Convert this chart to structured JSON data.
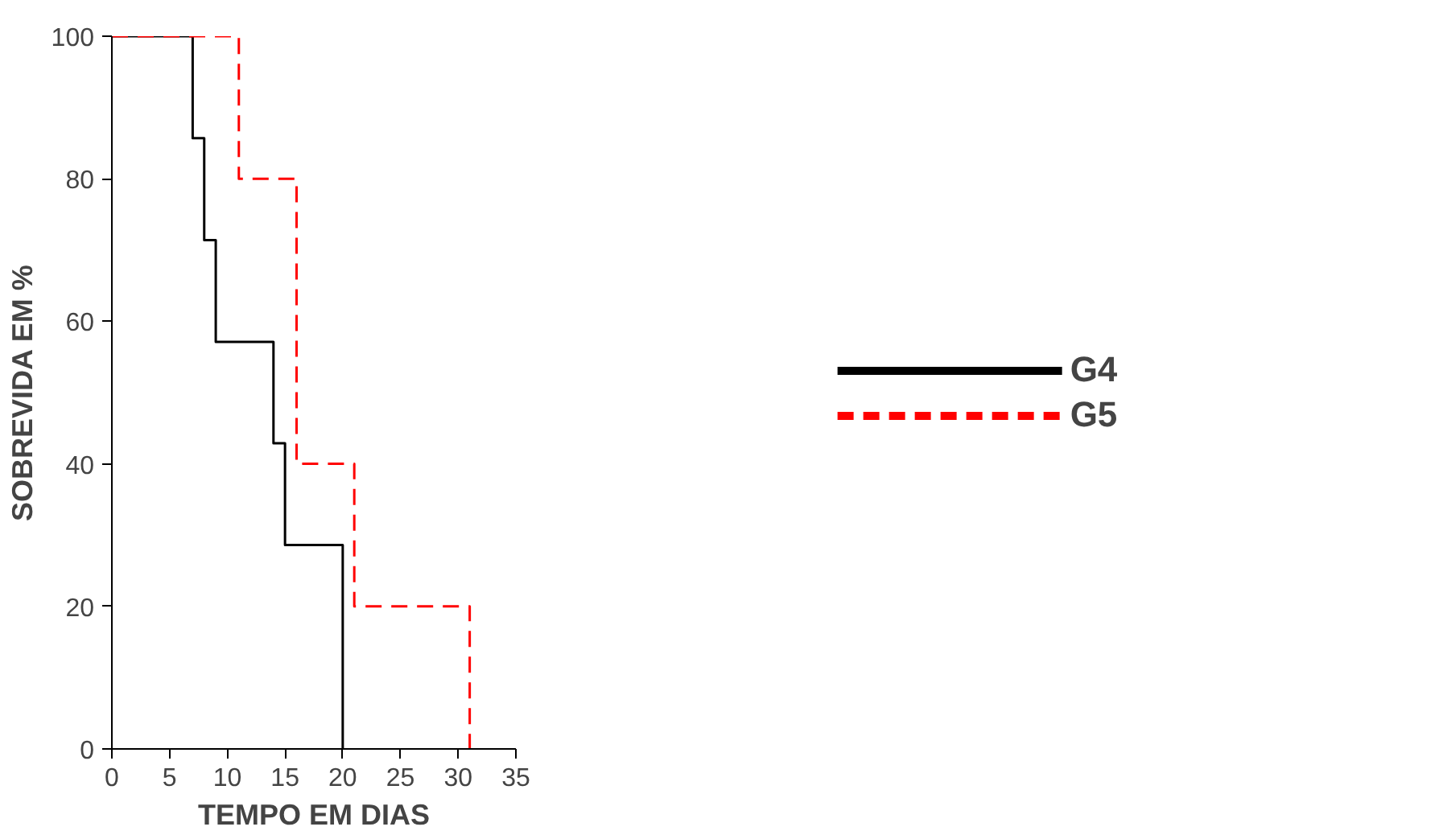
{
  "chart_data": {
    "type": "step",
    "xlabel": "TEMPO EM DIAS",
    "ylabel": "SOBREVIDA EM %",
    "xlim": [
      0,
      35
    ],
    "xticks": [
      0,
      5,
      10,
      15,
      20,
      25,
      30,
      35
    ],
    "ylim": [
      0,
      100
    ],
    "yticks": [
      0,
      20,
      40,
      60,
      80,
      100
    ],
    "grid": false,
    "legend": "right",
    "marker": "none",
    "series": [
      {
        "name": "G4",
        "color": "#000000",
        "line_style": "solid",
        "x": [
          0,
          7,
          8,
          9,
          14,
          15,
          20
        ],
        "values": [
          100,
          85.7,
          71.4,
          57.1,
          42.9,
          28.6,
          0
        ]
      },
      {
        "name": "G5",
        "color": "#ff0000",
        "line_style": "dashed",
        "x": [
          0,
          11,
          16,
          21,
          31
        ],
        "values": [
          100,
          80,
          40,
          20,
          0
        ]
      }
    ]
  }
}
